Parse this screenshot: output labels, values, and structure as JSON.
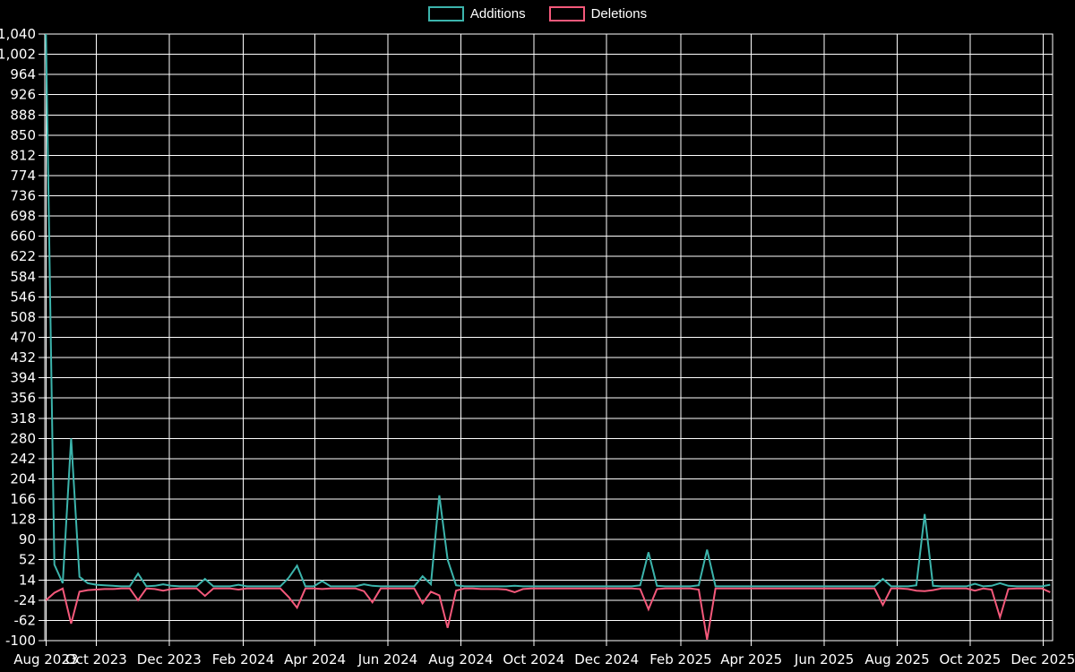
{
  "page": {
    "background": "#000000",
    "text_color": "#ffffff",
    "gridline_color": "#ffffff"
  },
  "legend": {
    "items": [
      {
        "label": "Additions",
        "color": "#3cb4ac"
      },
      {
        "label": "Deletions",
        "color": "#f4597b"
      }
    ]
  },
  "chart_data": {
    "type": "line",
    "title": "",
    "xlabel": "",
    "ylabel": "",
    "grid": true,
    "legend_position": "top-center",
    "background": "#000000",
    "ylim": [
      -100,
      1040
    ],
    "y_tick_step": 38,
    "xlim": [
      "2023-08-19",
      "2025-12-09"
    ],
    "y_ticks": {
      "values": [
        1040,
        1002,
        964,
        926,
        888,
        850,
        812,
        774,
        736,
        698,
        660,
        622,
        584,
        546,
        508,
        470,
        432,
        394,
        356,
        318,
        280,
        242,
        204,
        166,
        128,
        90,
        52,
        14,
        -24,
        -62,
        -100
      ],
      "labels": [
        "1,040",
        "1,002",
        "964",
        "926",
        "888",
        "850",
        "812",
        "774",
        "736",
        "698",
        "660",
        "622",
        "584",
        "546",
        "508",
        "470",
        "432",
        "394",
        "356",
        "318",
        "280",
        "242",
        "204",
        "166",
        "128",
        "90",
        "52",
        "14",
        "-24",
        "-62",
        "-100"
      ]
    },
    "x_ticks": [
      {
        "label": "Aug 2023",
        "date": "2023-08-20"
      },
      {
        "label": "Oct 2023",
        "date": "2023-10-01"
      },
      {
        "label": "Dec 2023",
        "date": "2023-12-01"
      },
      {
        "label": "Feb 2024",
        "date": "2024-02-01"
      },
      {
        "label": "Apr 2024",
        "date": "2024-04-01"
      },
      {
        "label": "Jun 2024",
        "date": "2024-06-01"
      },
      {
        "label": "Aug 2024",
        "date": "2024-08-01"
      },
      {
        "label": "Oct 2024",
        "date": "2024-10-01"
      },
      {
        "label": "Dec 2024",
        "date": "2024-12-01"
      },
      {
        "label": "Feb 2025",
        "date": "2025-02-01"
      },
      {
        "label": "Apr 2025",
        "date": "2025-04-01"
      },
      {
        "label": "Jun 2025",
        "date": "2025-06-01"
      },
      {
        "label": "Aug 2025",
        "date": "2025-08-01"
      },
      {
        "label": "Oct 2025",
        "date": "2025-10-01"
      },
      {
        "label": "Dec 2025",
        "date": "2025-12-01"
      }
    ],
    "x": [
      "2023-08-20",
      "2023-08-27",
      "2023-09-03",
      "2023-09-10",
      "2023-09-17",
      "2023-09-24",
      "2023-10-01",
      "2023-10-08",
      "2023-10-15",
      "2023-10-22",
      "2023-10-29",
      "2023-11-05",
      "2023-11-12",
      "2023-11-19",
      "2023-11-26",
      "2023-12-03",
      "2023-12-10",
      "2023-12-17",
      "2023-12-24",
      "2023-12-31",
      "2024-01-07",
      "2024-01-14",
      "2024-01-21",
      "2024-01-28",
      "2024-02-04",
      "2024-02-11",
      "2024-02-18",
      "2024-02-25",
      "2024-03-03",
      "2024-03-10",
      "2024-03-17",
      "2024-03-24",
      "2024-03-31",
      "2024-04-07",
      "2024-04-14",
      "2024-04-21",
      "2024-04-28",
      "2024-05-05",
      "2024-05-12",
      "2024-05-19",
      "2024-05-26",
      "2024-06-02",
      "2024-06-09",
      "2024-06-16",
      "2024-06-23",
      "2024-06-30",
      "2024-07-07",
      "2024-07-14",
      "2024-07-21",
      "2024-07-28",
      "2024-08-04",
      "2024-08-11",
      "2024-08-18",
      "2024-08-25",
      "2024-09-01",
      "2024-09-08",
      "2024-09-15",
      "2024-09-22",
      "2024-09-29",
      "2024-10-06",
      "2024-10-13",
      "2024-10-20",
      "2024-10-27",
      "2024-11-03",
      "2024-11-10",
      "2024-11-17",
      "2024-11-24",
      "2024-12-01",
      "2024-12-08",
      "2024-12-15",
      "2024-12-22",
      "2024-12-29",
      "2025-01-05",
      "2025-01-12",
      "2025-01-19",
      "2025-01-26",
      "2025-02-02",
      "2025-02-09",
      "2025-02-16",
      "2025-02-23",
      "2025-03-02",
      "2025-03-09",
      "2025-03-16",
      "2025-03-23",
      "2025-03-30",
      "2025-04-06",
      "2025-04-13",
      "2025-04-20",
      "2025-04-27",
      "2025-05-04",
      "2025-05-11",
      "2025-05-18",
      "2025-05-25",
      "2025-06-01",
      "2025-06-08",
      "2025-06-15",
      "2025-06-22",
      "2025-06-29",
      "2025-07-06",
      "2025-07-13",
      "2025-07-20",
      "2025-07-27",
      "2025-08-03",
      "2025-08-10",
      "2025-08-17",
      "2025-08-24",
      "2025-08-31",
      "2025-09-07",
      "2025-09-14",
      "2025-09-21",
      "2025-09-28",
      "2025-10-05",
      "2025-10-12",
      "2025-10-19",
      "2025-10-26",
      "2025-11-02",
      "2025-11-09",
      "2025-11-16",
      "2025-11-23",
      "2025-11-30",
      "2025-12-07"
    ],
    "series": [
      {
        "name": "Additions",
        "color": "#3cb4ac",
        "values": [
          1040,
          43,
          8,
          280,
          20,
          8,
          5,
          4,
          3,
          2,
          2,
          26,
          2,
          3,
          6,
          3,
          2,
          2,
          2,
          16,
          2,
          2,
          2,
          5,
          2,
          2,
          2,
          2,
          2,
          18,
          41,
          2,
          2,
          12,
          2,
          2,
          2,
          2,
          6,
          3,
          2,
          2,
          2,
          2,
          2,
          21,
          6,
          173,
          52,
          4,
          2,
          2,
          2,
          2,
          2,
          2,
          3,
          2,
          2,
          2,
          2,
          2,
          2,
          2,
          2,
          2,
          2,
          2,
          2,
          2,
          2,
          4,
          66,
          3,
          2,
          2,
          2,
          2,
          4,
          71,
          2,
          2,
          2,
          2,
          2,
          2,
          2,
          2,
          2,
          2,
          2,
          2,
          2,
          2,
          2,
          2,
          2,
          2,
          2,
          2,
          16,
          2,
          2,
          2,
          4,
          138,
          3,
          2,
          2,
          2,
          2,
          7,
          2,
          3,
          8,
          3,
          2,
          2,
          2,
          2,
          5
        ]
      },
      {
        "name": "Deletions",
        "color": "#f4597b",
        "values": [
          -24,
          -10,
          -2,
          -68,
          -8,
          -5,
          -4,
          -3,
          -3,
          -2,
          -2,
          -24,
          -2,
          -3,
          -6,
          -3,
          -2,
          -2,
          -2,
          -16,
          -2,
          -2,
          -2,
          -4,
          -2,
          -2,
          -2,
          -2,
          -2,
          -18,
          -38,
          -2,
          -2,
          -3,
          -2,
          -2,
          -2,
          -2,
          -7,
          -28,
          -2,
          -2,
          -2,
          -2,
          -2,
          -30,
          -8,
          -15,
          -76,
          -6,
          -2,
          -2,
          -3,
          -3,
          -3,
          -4,
          -9,
          -3,
          -2,
          -2,
          -2,
          -2,
          -2,
          -2,
          -2,
          -2,
          -2,
          -2,
          -2,
          -2,
          -2,
          -3,
          -41,
          -3,
          -2,
          -2,
          -2,
          -2,
          -4,
          -98,
          -2,
          -2,
          -2,
          -2,
          -2,
          -2,
          -2,
          -2,
          -2,
          -2,
          -2,
          -2,
          -2,
          -2,
          -2,
          -2,
          -2,
          -2,
          -2,
          -2,
          -33,
          -2,
          -2,
          -3,
          -6,
          -7,
          -5,
          -2,
          -2,
          -2,
          -2,
          -6,
          -2,
          -4,
          -56,
          -3,
          -2,
          -2,
          -2,
          -2,
          -9
        ]
      }
    ]
  }
}
